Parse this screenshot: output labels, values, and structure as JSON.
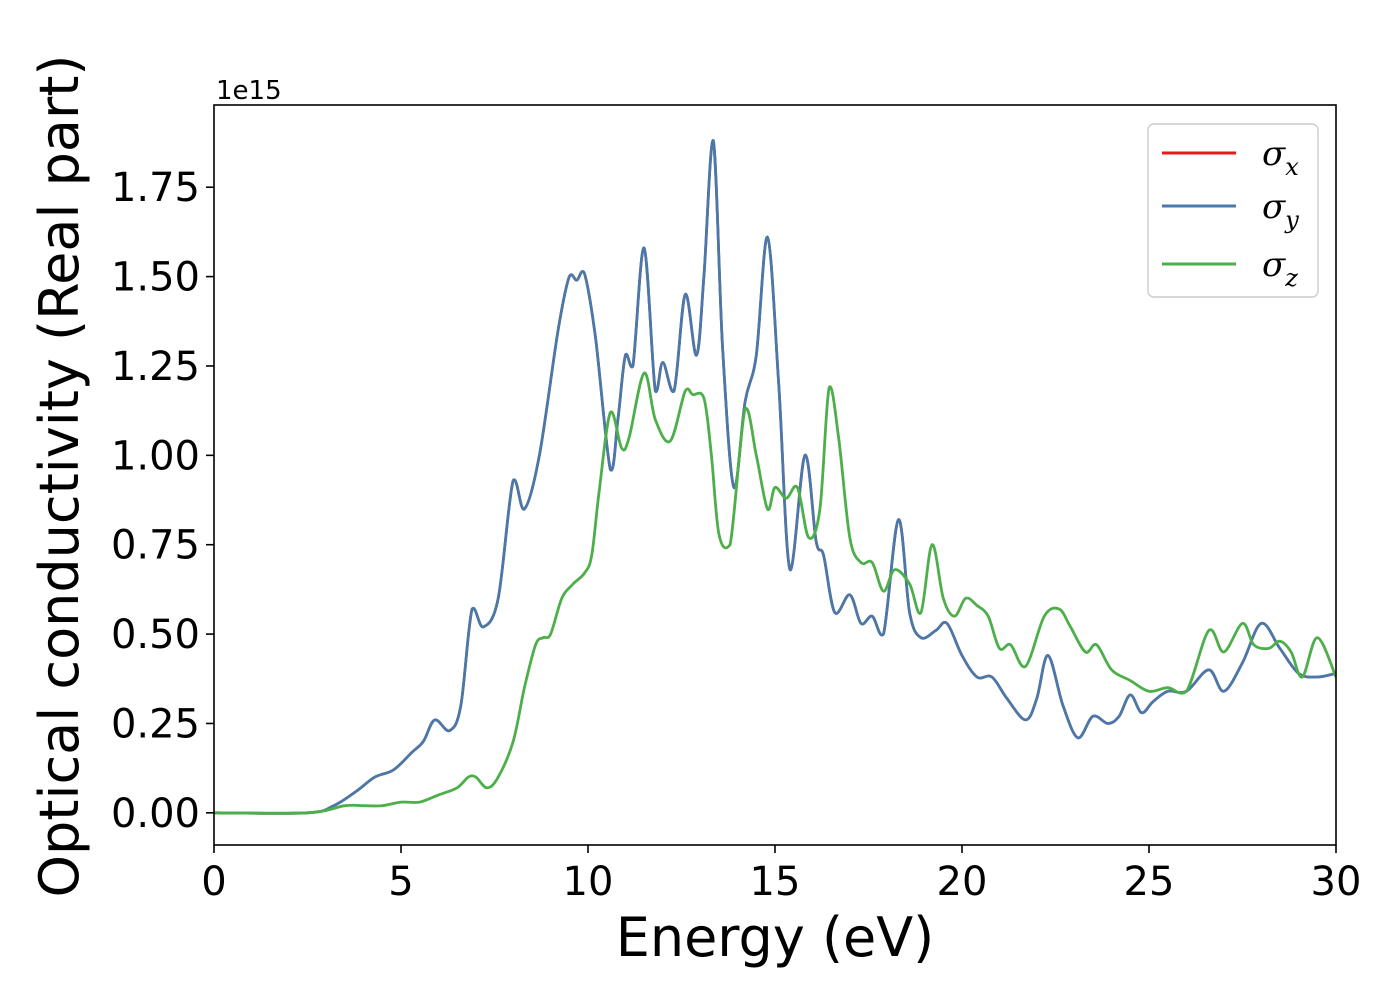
{
  "chart_data": {
    "type": "line",
    "xlabel": "Energy (eV)",
    "ylabel": "Optical conductivity (Real part)",
    "y_offset_label": "1e15",
    "xlim": [
      0,
      30
    ],
    "ylim": [
      -0.09,
      1.98
    ],
    "x_ticks": [
      0,
      5,
      10,
      15,
      20,
      25,
      30
    ],
    "x_tick_labels": [
      "0",
      "5",
      "10",
      "15",
      "20",
      "25",
      "30"
    ],
    "y_ticks": [
      0,
      0.25,
      0.5,
      0.75,
      1.0,
      1.25,
      1.5,
      1.75
    ],
    "y_tick_labels": [
      "0.00",
      "0.25",
      "0.50",
      "0.75",
      "1.00",
      "1.25",
      "1.50",
      "1.75"
    ],
    "grid": false,
    "legend_position": "top-right",
    "series": [
      {
        "name": "σx",
        "legend_base": "σ",
        "legend_sub": "x",
        "color": "#e41a1c",
        "x": [
          0,
          2.5,
          3.2,
          3.8,
          4.3,
          4.8,
          5.3,
          5.6,
          5.9,
          6.3,
          6.6,
          6.9,
          7.2,
          7.6,
          8.0,
          8.3,
          8.7,
          9.2,
          9.5,
          9.7,
          9.9,
          10.2,
          10.6,
          10.8,
          11.0,
          11.2,
          11.5,
          11.8,
          12.0,
          12.3,
          12.6,
          12.9,
          13.1,
          13.35,
          13.6,
          13.9,
          14.2,
          14.5,
          14.8,
          15.1,
          15.4,
          15.8,
          16.1,
          16.3,
          16.6,
          17.0,
          17.3,
          17.6,
          17.9,
          18.3,
          18.6,
          18.9,
          19.3,
          19.6,
          20.0,
          20.4,
          20.8,
          21.2,
          21.7,
          22.0,
          22.3,
          22.7,
          23.1,
          23.5,
          23.9,
          24.2,
          24.5,
          24.8,
          25.1,
          25.5,
          26.0,
          26.6,
          27.0,
          27.5,
          28.0,
          28.5,
          29.0,
          29.5,
          30.0
        ],
        "values": [
          0.0,
          0.0,
          0.02,
          0.06,
          0.1,
          0.12,
          0.17,
          0.2,
          0.26,
          0.23,
          0.3,
          0.57,
          0.52,
          0.6,
          0.93,
          0.85,
          1.0,
          1.35,
          1.5,
          1.49,
          1.51,
          1.33,
          0.96,
          1.1,
          1.28,
          1.25,
          1.58,
          1.18,
          1.26,
          1.18,
          1.45,
          1.28,
          1.5,
          1.88,
          1.3,
          0.91,
          1.15,
          1.28,
          1.61,
          1.2,
          0.68,
          1.0,
          0.76,
          0.72,
          0.56,
          0.61,
          0.53,
          0.55,
          0.5,
          0.82,
          0.56,
          0.49,
          0.51,
          0.53,
          0.44,
          0.38,
          0.38,
          0.32,
          0.26,
          0.32,
          0.44,
          0.3,
          0.21,
          0.27,
          0.25,
          0.27,
          0.33,
          0.28,
          0.31,
          0.34,
          0.34,
          0.4,
          0.34,
          0.42,
          0.53,
          0.46,
          0.39,
          0.38,
          0.39
        ]
      },
      {
        "name": "σy",
        "legend_base": "σ",
        "legend_sub": "y",
        "color": "#4a78a8",
        "x": [
          0,
          2.5,
          3.2,
          3.8,
          4.3,
          4.8,
          5.3,
          5.6,
          5.9,
          6.3,
          6.6,
          6.9,
          7.2,
          7.6,
          8.0,
          8.3,
          8.7,
          9.2,
          9.5,
          9.7,
          9.9,
          10.2,
          10.6,
          10.8,
          11.0,
          11.2,
          11.5,
          11.8,
          12.0,
          12.3,
          12.6,
          12.9,
          13.1,
          13.35,
          13.6,
          13.9,
          14.2,
          14.5,
          14.8,
          15.1,
          15.4,
          15.8,
          16.1,
          16.3,
          16.6,
          17.0,
          17.3,
          17.6,
          17.9,
          18.3,
          18.6,
          18.9,
          19.3,
          19.6,
          20.0,
          20.4,
          20.8,
          21.2,
          21.7,
          22.0,
          22.3,
          22.7,
          23.1,
          23.5,
          23.9,
          24.2,
          24.5,
          24.8,
          25.1,
          25.5,
          26.0,
          26.6,
          27.0,
          27.5,
          28.0,
          28.5,
          29.0,
          29.5,
          30.0
        ],
        "values": [
          0.0,
          0.0,
          0.02,
          0.06,
          0.1,
          0.12,
          0.17,
          0.2,
          0.26,
          0.23,
          0.3,
          0.57,
          0.52,
          0.6,
          0.93,
          0.85,
          1.0,
          1.35,
          1.5,
          1.49,
          1.51,
          1.33,
          0.96,
          1.1,
          1.28,
          1.25,
          1.58,
          1.18,
          1.26,
          1.18,
          1.45,
          1.28,
          1.5,
          1.88,
          1.3,
          0.91,
          1.15,
          1.28,
          1.61,
          1.2,
          0.68,
          1.0,
          0.76,
          0.72,
          0.56,
          0.61,
          0.53,
          0.55,
          0.5,
          0.82,
          0.56,
          0.49,
          0.51,
          0.53,
          0.44,
          0.38,
          0.38,
          0.32,
          0.26,
          0.32,
          0.44,
          0.3,
          0.21,
          0.27,
          0.25,
          0.27,
          0.33,
          0.28,
          0.31,
          0.34,
          0.34,
          0.4,
          0.34,
          0.42,
          0.53,
          0.46,
          0.39,
          0.38,
          0.39
        ]
      },
      {
        "name": "σz",
        "legend_base": "σ",
        "legend_sub": "z",
        "color": "#4daf4a",
        "x": [
          0,
          2.5,
          3.5,
          4.0,
          4.5,
          5.0,
          5.5,
          6.0,
          6.5,
          6.8,
          7.0,
          7.3,
          7.6,
          8.0,
          8.3,
          8.6,
          8.8,
          9.0,
          9.3,
          9.6,
          9.9,
          10.1,
          10.3,
          10.6,
          10.9,
          11.1,
          11.5,
          11.8,
          12.2,
          12.6,
          12.8,
          13.1,
          13.3,
          13.5,
          13.8,
          14.2,
          14.5,
          14.8,
          15.0,
          15.3,
          15.6,
          15.9,
          16.2,
          16.45,
          16.7,
          17.0,
          17.3,
          17.6,
          17.9,
          18.2,
          18.6,
          18.9,
          19.2,
          19.5,
          19.8,
          20.1,
          20.4,
          20.7,
          21.0,
          21.3,
          21.7,
          22.2,
          22.6,
          22.9,
          23.3,
          23.6,
          24.0,
          24.5,
          25.0,
          25.5,
          26.0,
          26.6,
          27.0,
          27.5,
          27.8,
          28.2,
          28.5,
          28.8,
          29.1,
          29.5,
          30.0
        ],
        "values": [
          0.0,
          0.0,
          0.02,
          0.02,
          0.02,
          0.03,
          0.03,
          0.05,
          0.07,
          0.1,
          0.1,
          0.07,
          0.1,
          0.2,
          0.35,
          0.47,
          0.49,
          0.5,
          0.6,
          0.64,
          0.67,
          0.72,
          0.9,
          1.12,
          1.02,
          1.05,
          1.23,
          1.1,
          1.04,
          1.18,
          1.17,
          1.16,
          1.0,
          0.78,
          0.75,
          1.13,
          1.0,
          0.85,
          0.91,
          0.88,
          0.91,
          0.77,
          0.85,
          1.19,
          1.05,
          0.77,
          0.7,
          0.7,
          0.62,
          0.68,
          0.64,
          0.56,
          0.75,
          0.6,
          0.55,
          0.6,
          0.58,
          0.55,
          0.46,
          0.47,
          0.41,
          0.55,
          0.57,
          0.52,
          0.45,
          0.47,
          0.4,
          0.37,
          0.34,
          0.35,
          0.34,
          0.51,
          0.45,
          0.53,
          0.47,
          0.46,
          0.48,
          0.45,
          0.38,
          0.49,
          0.38
        ]
      }
    ]
  }
}
